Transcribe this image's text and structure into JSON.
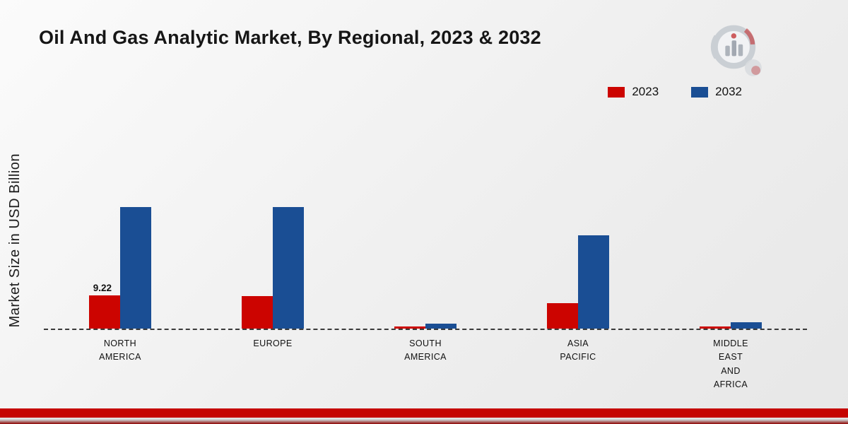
{
  "title": "Oil And Gas Analytic Market, By Regional, 2023 & 2032",
  "y_axis_label": "Market Size in USD Billion",
  "chart_data": {
    "type": "bar",
    "title": "Oil And Gas Analytic Market, By Regional, 2023 & 2032",
    "ylabel": "Market Size in USD Billion",
    "xlabel": "",
    "categories": [
      "NORTH\nAMERICA",
      "EUROPE",
      "SOUTH\nAMERICA",
      "ASIA\nPACIFIC",
      "MIDDLE\nEAST\nAND\nAFRICA"
    ],
    "series": [
      {
        "name": "2023",
        "color": "#cc0400",
        "values": [
          9.22,
          8.9,
          0.55,
          7.1,
          0.6
        ]
      },
      {
        "name": "2032",
        "color": "#1a4e94",
        "values": [
          33.5,
          33.5,
          1.4,
          25.8,
          1.7
        ]
      }
    ],
    "annotations": [
      {
        "series": "2023",
        "category_index": 0,
        "text": "9.22"
      }
    ],
    "ylim": [
      0,
      35
    ],
    "grid": false,
    "baseline_style": "dashed",
    "legend_position": "top-right"
  }
}
